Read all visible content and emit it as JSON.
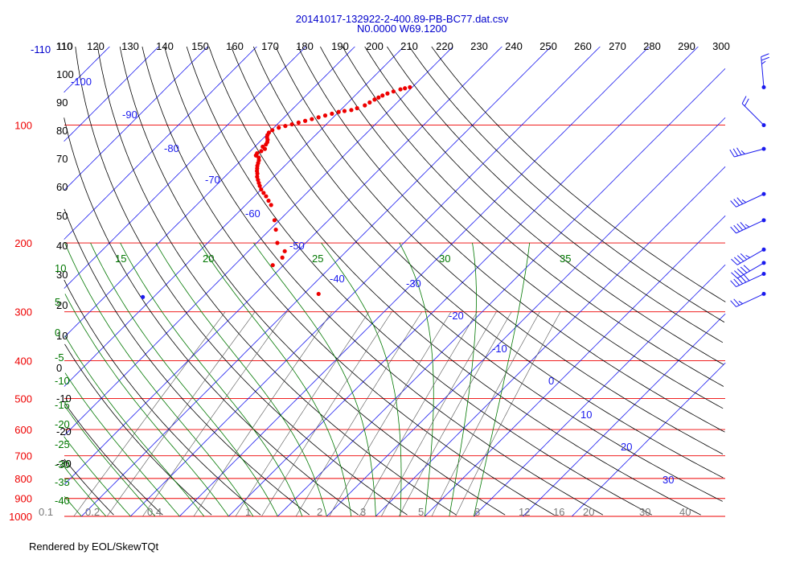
{
  "title": {
    "line1": "20141017-132922-2-400.89-PB-BC77.dat.csv",
    "line2": "N0.0000 W69.1200"
  },
  "footer": "Rendered by EOL/SkewTQt",
  "colors": {
    "isotherm": "#1a1aee",
    "isobar": "#ee0000",
    "dry_adiabat": "#000000",
    "moist_adiabat": "#007700",
    "mixing_ratio": "#555555",
    "trace": "#ee0000",
    "wind": "#1a1aee"
  },
  "chart_data": {
    "type": "scatter",
    "title": "20141017-132922-2-400.89-PB-BC77.dat.csv",
    "subtitle": "N0.0000 W69.1200",
    "top_temperature_ticks": [
      "110",
      "120",
      "130",
      "140",
      "150",
      "160",
      "170",
      "180",
      "190",
      "200",
      "210",
      "220",
      "230",
      "240",
      "250",
      "260",
      "270",
      "280",
      "290",
      "300"
    ],
    "top_left_label": "-110",
    "pressure_ticks": [
      "100",
      "200",
      "300",
      "400",
      "500",
      "600",
      "700",
      "800",
      "900",
      "1000"
    ],
    "dry_adiabat_labels": [
      "110",
      "100",
      "90",
      "80",
      "70",
      "60",
      "50",
      "40",
      "30",
      "20",
      "10",
      "0",
      "-10",
      "-20",
      "-30"
    ],
    "isotherm_labels": [
      "-100",
      "-90",
      "-80",
      "-70",
      "-60",
      "-50",
      "-40",
      "-30",
      "-20",
      "-10",
      "0",
      "10",
      "20",
      "30"
    ],
    "moist_adiabat_labels": [
      "10",
      "5",
      "0",
      "-5",
      "-10",
      "-15",
      "-20",
      "-25",
      "-30",
      "-35",
      "-40"
    ],
    "moist_adiabat_top_labels": [
      "15",
      "20",
      "25",
      "30",
      "35"
    ],
    "mixing_ratio_labels": [
      "0.1",
      "0.2",
      "0.4",
      "1",
      "2",
      "3",
      "5",
      "8",
      "12",
      "16",
      "20",
      "30",
      "40"
    ],
    "temperature_trace": [
      {
        "p": 80,
        "t": -60.5
      },
      {
        "p": 80.5,
        "t": -61.3
      },
      {
        "p": 81,
        "t": -62
      },
      {
        "p": 82,
        "t": -63
      },
      {
        "p": 83,
        "t": -63.8
      },
      {
        "p": 84,
        "t": -64.4
      },
      {
        "p": 85,
        "t": -64.8
      },
      {
        "p": 86,
        "t": -65.2
      },
      {
        "p": 87.5,
        "t": -65.6
      },
      {
        "p": 89,
        "t": -66
      },
      {
        "p": 90.5,
        "t": -67
      },
      {
        "p": 91.5,
        "t": -67.8
      },
      {
        "p": 92,
        "t": -69
      },
      {
        "p": 92.5,
        "t": -70
      },
      {
        "p": 93.5,
        "t": -71
      },
      {
        "p": 94.5,
        "t": -72
      },
      {
        "p": 95.5,
        "t": -73
      },
      {
        "p": 96.5,
        "t": -74
      },
      {
        "p": 97.5,
        "t": -75
      },
      {
        "p": 98.5,
        "t": -76
      },
      {
        "p": 99.5,
        "t": -77
      },
      {
        "p": 100.5,
        "t": -78
      },
      {
        "p": 101.5,
        "t": -79
      },
      {
        "p": 103,
        "t": -79.8
      },
      {
        "p": 104.5,
        "t": -80
      },
      {
        "p": 106,
        "t": -79.8
      },
      {
        "p": 107.5,
        "t": -79.4
      },
      {
        "p": 109,
        "t": -78.8
      },
      {
        "p": 110.5,
        "t": -78.4
      },
      {
        "p": 112,
        "t": -78.2
      },
      {
        "p": 113.5,
        "t": -78.4
      },
      {
        "p": 115,
        "t": -77.5
      },
      {
        "p": 116.5,
        "t": -77.8
      },
      {
        "p": 118,
        "t": -78.2
      },
      {
        "p": 119.5,
        "t": -78
      },
      {
        "p": 121,
        "t": -77
      },
      {
        "p": 123,
        "t": -76.4
      },
      {
        "p": 125,
        "t": -76
      },
      {
        "p": 127,
        "t": -75.6
      },
      {
        "p": 129,
        "t": -75.1
      },
      {
        "p": 131,
        "t": -74.6
      },
      {
        "p": 133,
        "t": -74
      },
      {
        "p": 135.5,
        "t": -73.4
      },
      {
        "p": 138,
        "t": -72.6
      },
      {
        "p": 140.5,
        "t": -71.8
      },
      {
        "p": 143,
        "t": -71
      },
      {
        "p": 146,
        "t": -70
      },
      {
        "p": 149,
        "t": -68.8
      },
      {
        "p": 152,
        "t": -67.6
      },
      {
        "p": 156,
        "t": -66.2
      },
      {
        "p": 160,
        "t": -64.8
      },
      {
        "p": 175,
        "t": -61
      },
      {
        "p": 185,
        "t": -58.8
      },
      {
        "p": 200,
        "t": -55.8
      },
      {
        "p": 210,
        "t": -52.6
      },
      {
        "p": 218,
        "t": -51.8
      },
      {
        "p": 228,
        "t": -52.2
      },
      {
        "p": 270,
        "t": -37
      }
    ],
    "dewpoint_trace": [
      {
        "p": 275,
        "t": -72.2
      }
    ],
    "wind_barbs": [
      {
        "p": 80,
        "direction_deg": 355,
        "speed_kt": 25
      },
      {
        "p": 100,
        "direction_deg": 315,
        "speed_kt": 20
      },
      {
        "p": 115,
        "direction_deg": 255,
        "speed_kt": 35
      },
      {
        "p": 150,
        "direction_deg": 245,
        "speed_kt": 35
      },
      {
        "p": 175,
        "direction_deg": 245,
        "speed_kt": 45
      },
      {
        "p": 208,
        "direction_deg": 240,
        "speed_kt": 45
      },
      {
        "p": 225,
        "direction_deg": 240,
        "speed_kt": 50
      },
      {
        "p": 240,
        "direction_deg": 245,
        "speed_kt": 50
      },
      {
        "p": 270,
        "direction_deg": 245,
        "speed_kt": 25
      }
    ],
    "ylim": [
      1000,
      63
    ],
    "y_scale": "log",
    "grid": true,
    "legend": "none"
  }
}
